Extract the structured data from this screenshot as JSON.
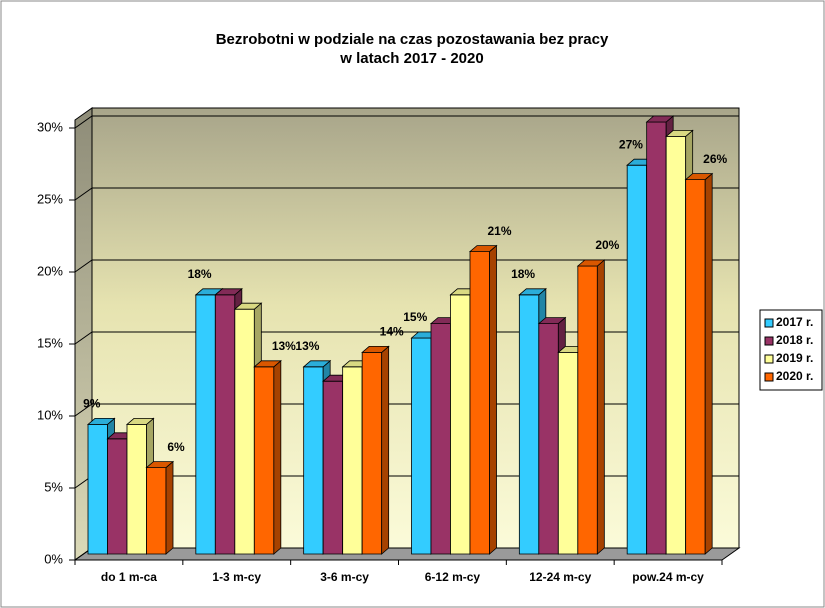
{
  "chart_data": {
    "type": "bar3d",
    "title": [
      "Bezrobotni w podziale na czas pozostawania bez pracy",
      "w latach  2017 - 2020"
    ],
    "categories": [
      "do 1 m-ca",
      "1-3 m-cy",
      "3-6 m-cy",
      "6-12 m-cy",
      "12-24 m-cy",
      "pow.24 m-cy"
    ],
    "series": [
      {
        "name": "2017 r.",
        "color": "#33ccff",
        "values": [
          9,
          18,
          13,
          15,
          18,
          27
        ],
        "value_labels": [
          "9%",
          "18%",
          "13%",
          "15%",
          "18%",
          "27%"
        ]
      },
      {
        "name": "2018 r.",
        "color": "#993366",
        "values": [
          8,
          18,
          12,
          16,
          16,
          30
        ]
      },
      {
        "name": "2019 r.",
        "color": "#ffff99",
        "values": [
          9,
          17,
          13,
          18,
          14,
          29
        ]
      },
      {
        "name": "2020 r.",
        "color": "#ff6600",
        "values": [
          6,
          13,
          14,
          21,
          20,
          26
        ],
        "value_labels": [
          "6%",
          "13%",
          "14%",
          "21%",
          "20%",
          "26%"
        ]
      }
    ],
    "ylim": [
      0,
      30
    ],
    "yticks": [
      {
        "value": 0,
        "label": "0%"
      },
      {
        "value": 5,
        "label": "5%"
      },
      {
        "value": 10,
        "label": "10%"
      },
      {
        "value": 15,
        "label": "15%"
      },
      {
        "value": 20,
        "label": "20%"
      },
      {
        "value": 25,
        "label": "25%"
      },
      {
        "value": 30,
        "label": "30%"
      }
    ],
    "grid": true,
    "legend": "right"
  }
}
